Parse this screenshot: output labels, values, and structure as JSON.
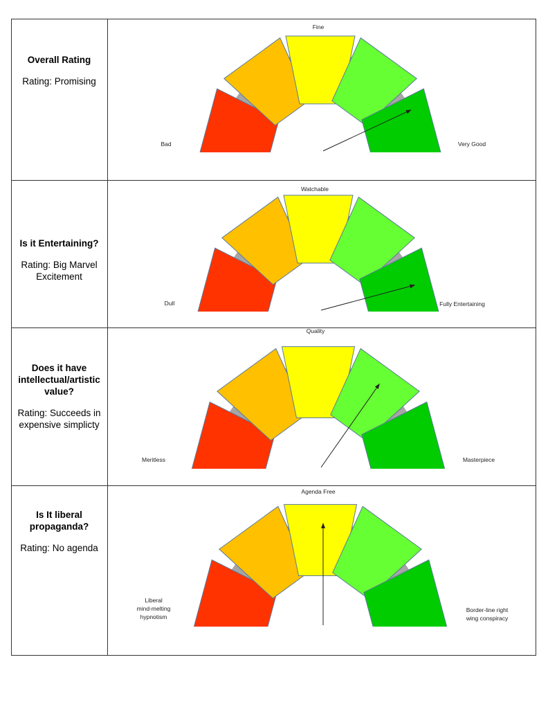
{
  "rows": [
    {
      "question": "Overall Rating",
      "rating": "Rating: Promising",
      "gauge": {
        "left": [
          "Bad"
        ],
        "top": [
          "Fine"
        ],
        "right": [
          "Very Good"
        ]
      }
    },
    {
      "question": "Is it Entertaining?",
      "rating": "Rating: Big Marvel Excitement",
      "gauge": {
        "left": [
          "Dull"
        ],
        "top": [
          "Watchable"
        ],
        "right": [
          "Fully Entertaining"
        ]
      }
    },
    {
      "question": "Does it have intellectual/artistic value?",
      "rating": "Rating: Succeeds in expensive simplicty",
      "gauge": {
        "left": [
          "Meritless"
        ],
        "top": [
          "Quality"
        ],
        "right": [
          "Masterpiece"
        ]
      }
    },
    {
      "question": "Is It liberal propaganda?",
      "rating": "Rating: No agenda",
      "gauge": {
        "left": [
          "Liberal",
          "mind-melting",
          "hypnotism"
        ],
        "top": [
          "Agenda Free"
        ],
        "right": [
          "Border-line right",
          "wing conspiracy"
        ]
      }
    }
  ]
}
